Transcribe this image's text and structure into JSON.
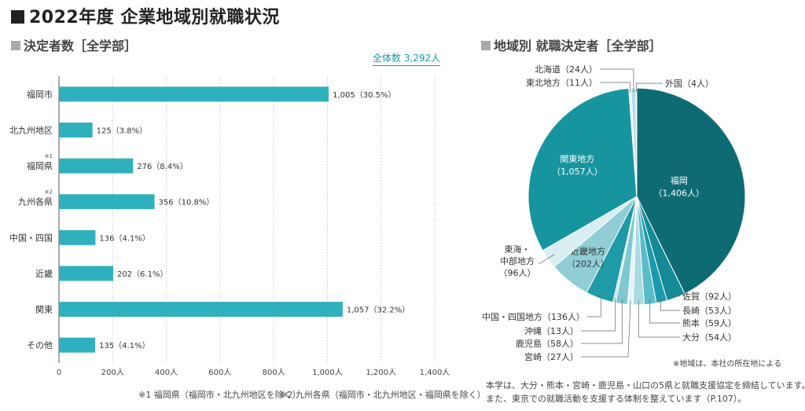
{
  "header": {
    "title": "2022年度 企業地域別就職状況"
  },
  "left_panel": {
    "title": "決定者数［全学部］",
    "total_label": "全体数 3,292人",
    "footnote1": "※1 福岡県（福岡市・北九州地区を除く）",
    "footnote2": "※2 九州各県（福岡市・北九州地区・福岡県を除く）",
    "mark1": "※1",
    "mark2": "※2"
  },
  "right_panel": {
    "title": "地域別 就職決定者［全学部］",
    "note_region": "※地域は、本社の所在地による",
    "note_text_1": "本学は、大分・熊本・宮崎・鹿児島・山口の5県と就職支援協定を締結しています。",
    "note_text_2": "また、東京での就職活動を支援する体制を整えています（P.107）。"
  },
  "chart_data": [
    {
      "type": "bar",
      "orientation": "horizontal",
      "title": "決定者数［全学部］",
      "categories": [
        "福岡市",
        "北九州地区",
        "福岡県",
        "九州各県",
        "中国・四国",
        "近畿",
        "関東",
        "その他"
      ],
      "values": [
        1005,
        125,
        276,
        356,
        136,
        202,
        1057,
        135
      ],
      "value_labels": [
        "1,005（30.5%）",
        "125（3.8%）",
        "276（8.4%）",
        "356（10.8%）",
        "136（4.1%）",
        "202（6.1%）",
        "1,057（32.2%）",
        "135（4.1%）"
      ],
      "xlim": [
        0,
        1400
      ],
      "xticks": [
        0,
        200,
        400,
        600,
        800,
        1000,
        1200,
        1400
      ],
      "xtick_labels": [
        "0",
        "200人",
        "400人",
        "600人",
        "800人",
        "1,000人",
        "1,200人",
        "1,400人"
      ],
      "grid": "vertical dotted",
      "color": "#2fb1bd"
    },
    {
      "type": "pie",
      "title": "地域別 就職決定者［全学部］",
      "slices": [
        {
          "label": "福岡",
          "value": 1406,
          "text": "（1,406人）",
          "color": "#0e6b74"
        },
        {
          "label": "佐賀",
          "value": 92,
          "text": "佐賀（92人）",
          "color": "#138a95"
        },
        {
          "label": "長崎",
          "value": 53,
          "text": "長崎（53人）",
          "color": "#1a9aab"
        },
        {
          "label": "熊本",
          "value": 59,
          "text": "熊本（59人）",
          "color": "#59bcc6"
        },
        {
          "label": "大分",
          "value": 54,
          "text": "大分（54人）",
          "color": "#a9dce2"
        },
        {
          "label": "宮崎",
          "value": 27,
          "text": "宮崎（27人）",
          "color": "#e4f4f6"
        },
        {
          "label": "鹿児島",
          "value": 58,
          "text": "鹿児島（58人）",
          "color": "#7ec8d1"
        },
        {
          "label": "沖縄",
          "value": 13,
          "text": "沖縄（13人）",
          "color": "#bfe4e8"
        },
        {
          "label": "中国・四国地方",
          "value": 136,
          "text": "中国・四国地方（136人）",
          "color": "#1f9ba7"
        },
        {
          "label": "近畿地方",
          "value": 202,
          "text": "（202人）",
          "color": "#90cdd5"
        },
        {
          "label": "東海・中部地方",
          "value": 96,
          "text": "（96人）",
          "color": "#d8eef1"
        },
        {
          "label": "関東地方",
          "value": 1057,
          "text": "（1,057人）",
          "color": "#17959f"
        },
        {
          "label": "東北地方",
          "value": 11,
          "text": "東北地方（11人）",
          "color": "#e9f6f7"
        },
        {
          "label": "北海道",
          "value": 24,
          "text": "北海道（24人）",
          "color": "#b6dfe4"
        },
        {
          "label": "外国",
          "value": 4,
          "text": "外国（4人）",
          "color": "#7ec8d1"
        }
      ],
      "inside_labels": {
        "福岡": [
          "福岡",
          "（1,406人）"
        ],
        "関東地方": [
          "関東地方",
          "（1,057人）"
        ],
        "近畿地方": [
          "近畿地方",
          "（202人）"
        ]
      },
      "outside_multiline": {
        "東海・中部地方": [
          "東海・",
          "中部地方",
          "（96人）"
        ]
      }
    }
  ]
}
